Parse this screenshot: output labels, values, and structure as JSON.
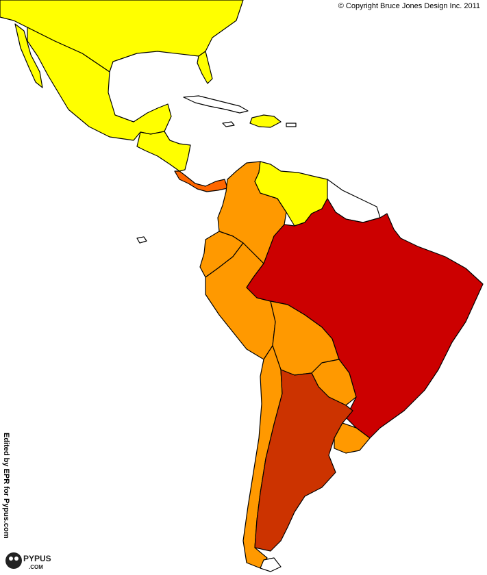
{
  "copyright": "© Copyright Bruce Jones Design Inc. 2011",
  "edited_by": "Edited by EPR for Pypus.com",
  "logo": {
    "text": "PYPUS",
    "subtext": ".COM"
  },
  "colors": {
    "yellow": "#ffff00",
    "orange": "#ff9900",
    "dark_orange": "#ff6600",
    "red": "#cc0000",
    "rust": "#cc3300",
    "white": "#ffffff"
  },
  "regions": [
    {
      "name": "North America",
      "color": "yellow"
    },
    {
      "name": "Mexico",
      "color": "yellow"
    },
    {
      "name": "Central America",
      "color": "yellow"
    },
    {
      "name": "Costa Rica / Panama",
      "color": "dark_orange"
    },
    {
      "name": "Venezuela",
      "color": "yellow"
    },
    {
      "name": "Colombia",
      "color": "orange"
    },
    {
      "name": "Ecuador",
      "color": "orange"
    },
    {
      "name": "Peru",
      "color": "orange"
    },
    {
      "name": "Bolivia",
      "color": "orange"
    },
    {
      "name": "Paraguay",
      "color": "orange"
    },
    {
      "name": "Chile",
      "color": "orange"
    },
    {
      "name": "Uruguay",
      "color": "orange"
    },
    {
      "name": "Argentina",
      "color": "rust"
    },
    {
      "name": "Brazil",
      "color": "red"
    },
    {
      "name": "Guianas",
      "color": "white"
    },
    {
      "name": "Caribbean islands",
      "color": "white"
    }
  ]
}
